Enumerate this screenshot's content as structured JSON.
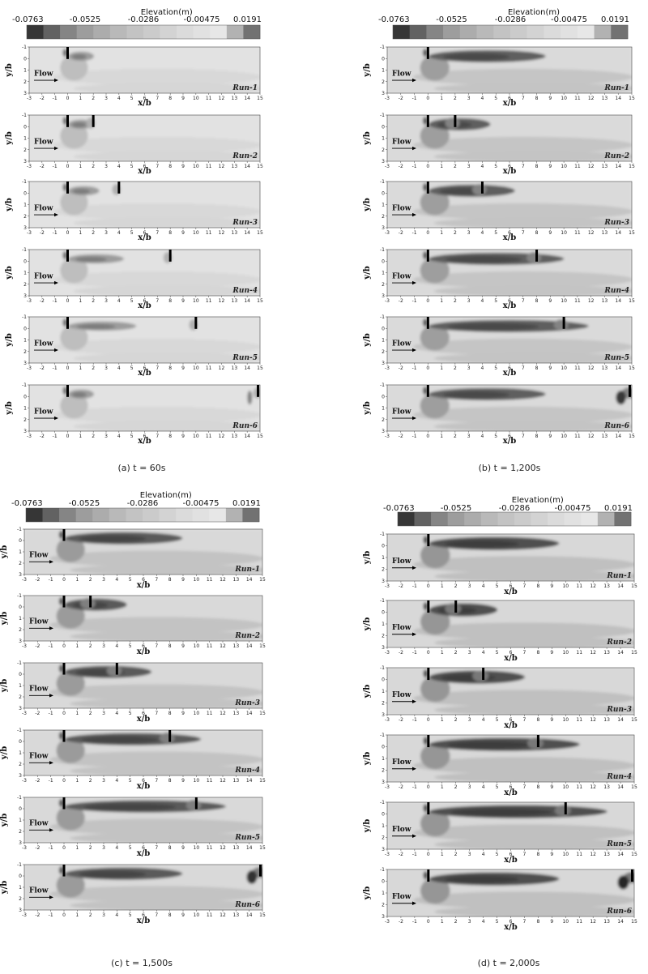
{
  "chart_data": {
    "type": "heatmap",
    "colorbar": {
      "title": "Elevation(m)",
      "tick_labels": [
        "-0.0763",
        "-0.0525",
        "-0.0286",
        "-0.00475",
        "0.0191"
      ],
      "colors": [
        "#363636",
        "#626262",
        "#858585",
        "#9d9d9d",
        "#acacac",
        "#b9b9b9",
        "#c3c3c3",
        "#cbcbcb",
        "#d3d3d3",
        "#dbdbdb",
        "#e1e1e1",
        "#e7e7e7",
        "#b2b2b2",
        "#727272"
      ]
    },
    "xlabel": "x/b",
    "ylabel": "y/b",
    "xlim": [
      -3,
      15
    ],
    "ylim": [
      -1,
      3
    ],
    "x_ticks": [
      "-3",
      "-2",
      "-1",
      "0",
      "1",
      "2",
      "3",
      "4",
      "5",
      "6",
      "7",
      "8",
      "9",
      "10",
      "11",
      "12",
      "13",
      "14",
      "15"
    ],
    "y_ticks": [
      "-1",
      "0",
      "1",
      "2",
      "3"
    ],
    "flow_label": "Flow",
    "groyne1_x": 0,
    "runs": [
      {
        "name": "Run-1",
        "groyne2_x": null
      },
      {
        "name": "Run-2",
        "groyne2_x": 2
      },
      {
        "name": "Run-3",
        "groyne2_x": 4
      },
      {
        "name": "Run-4",
        "groyne2_x": 8
      },
      {
        "name": "Run-5",
        "groyne2_x": 10
      },
      {
        "name": "Run-6",
        "groyne2_x": 15
      }
    ],
    "panels": [
      {
        "caption": "(a) t = 60s",
        "intensity": 0.2
      },
      {
        "caption": "(b) t = 1,200s",
        "intensity": 0.85
      },
      {
        "caption": "(c) t = 1,500s",
        "intensity": 0.9
      },
      {
        "caption": "(d) t = 2,000s",
        "intensity": 1.0
      }
    ]
  }
}
